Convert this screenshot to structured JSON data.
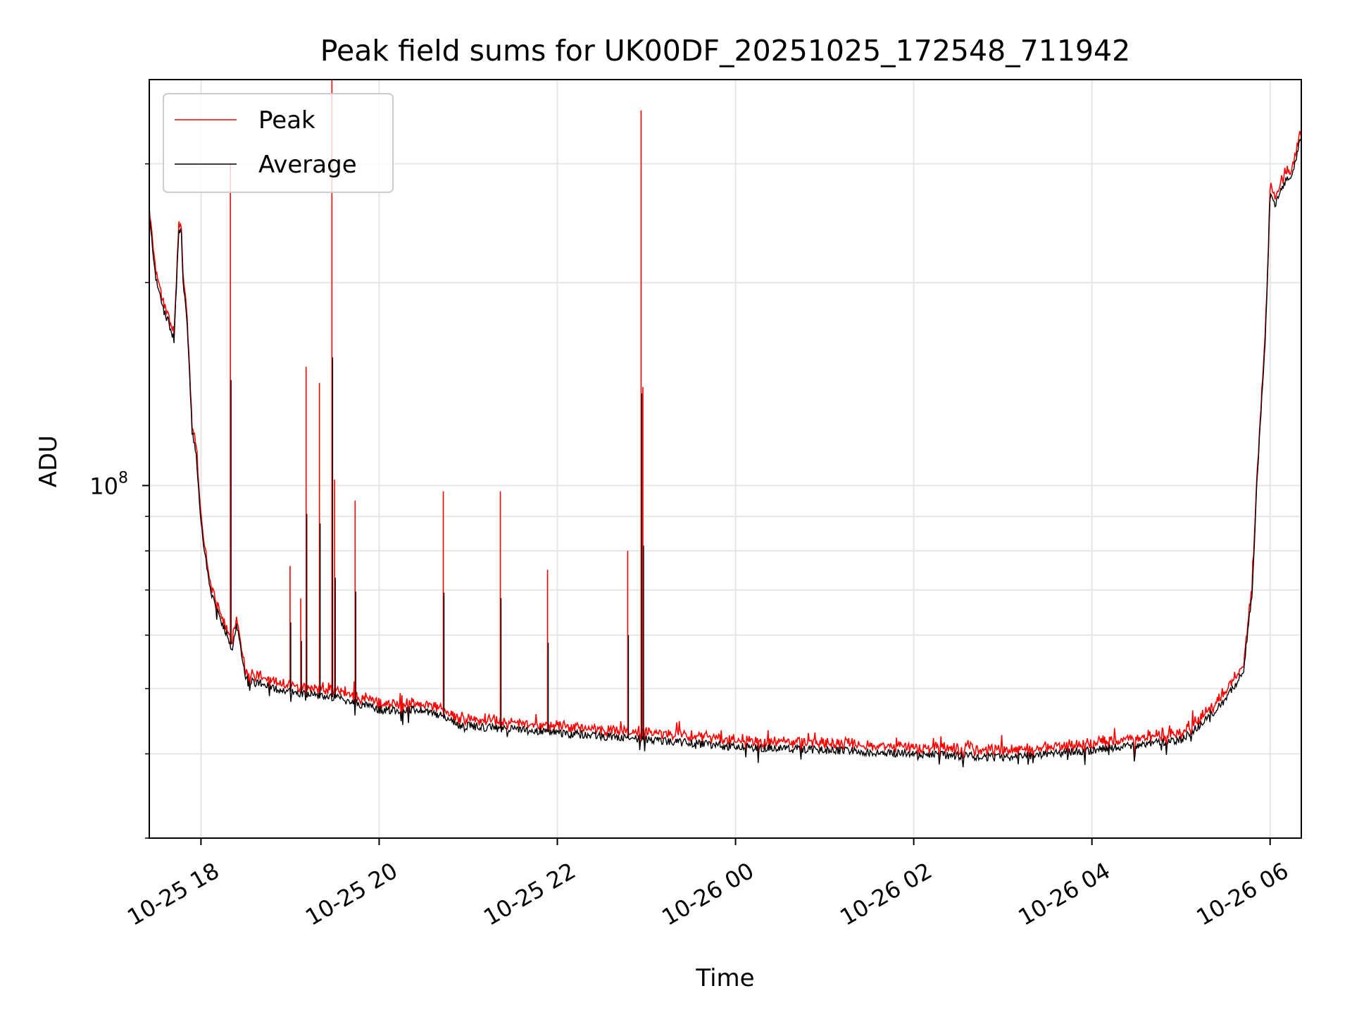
{
  "chart_data": {
    "type": "line",
    "title": "Peak field sums for UK00DF_20251025_172548_711942",
    "xlabel": "Time",
    "ylabel": "ADU",
    "yscale": "log",
    "ytick_label_base": "10",
    "ytick_label_exp": "8",
    "ytick_value": 100000000,
    "ylim": [
      30000000,
      400000000
    ],
    "minor_yticks": [
      30000000,
      40000000,
      50000000,
      60000000,
      70000000,
      80000000,
      90000000,
      200000000,
      300000000
    ],
    "xlim_hours": [
      -0.58,
      12.35
    ],
    "xticks": [
      {
        "hour": 0,
        "label": "10-25 18"
      },
      {
        "hour": 2,
        "label": "10-25 20"
      },
      {
        "hour": 4,
        "label": "10-25 22"
      },
      {
        "hour": 6,
        "label": "10-26 00"
      },
      {
        "hour": 8,
        "label": "10-26 02"
      },
      {
        "hour": 10,
        "label": "10-26 04"
      },
      {
        "hour": 12,
        "label": "10-26 06"
      }
    ],
    "grid": true,
    "legend_position": "top-left",
    "series": [
      {
        "name": "Peak",
        "color": "#ff0000"
      },
      {
        "name": "Average",
        "color": "#000000"
      }
    ],
    "average_series": {
      "hours": [
        -0.58,
        -0.5,
        -0.4,
        -0.3,
        -0.25,
        -0.22,
        -0.2,
        -0.15,
        -0.1,
        -0.05,
        0.0,
        0.1,
        0.2,
        0.3,
        0.35,
        0.4,
        0.5,
        0.6,
        0.7,
        0.8,
        1.0,
        1.5,
        1.9,
        2.0,
        2.5,
        2.8,
        2.9,
        3.0,
        3.5,
        4.0,
        5.0,
        6.0,
        7.0,
        8.0,
        9.0,
        10.0,
        11.0,
        11.2,
        11.5,
        11.7,
        11.8,
        11.85,
        11.95,
        12.0,
        12.05,
        12.15,
        12.25,
        12.35
      ],
      "values": [
        250000000,
        200000000,
        180000000,
        165000000,
        238000000,
        238000000,
        200000000,
        170000000,
        120000000,
        110000000,
        88000000,
        70000000,
        64000000,
        60000000,
        57000000,
        62000000,
        52000000,
        51000000,
        51000000,
        50000000,
        49500000,
        48500000,
        47000000,
        46500000,
        46500000,
        45000000,
        44000000,
        44000000,
        43500000,
        43000000,
        42000000,
        41000000,
        40500000,
        40000000,
        39500000,
        40500000,
        42000000,
        44000000,
        48000000,
        53000000,
        70000000,
        100000000,
        170000000,
        270000000,
        260000000,
        280000000,
        290000000,
        330000000
      ]
    },
    "peak_spikes": [
      {
        "hour": 0.33,
        "value": 300000000
      },
      {
        "hour": 1.0,
        "value": 76000000
      },
      {
        "hour": 1.12,
        "value": 68000000
      },
      {
        "hour": 1.18,
        "value": 150000000
      },
      {
        "hour": 1.33,
        "value": 142000000
      },
      {
        "hour": 1.47,
        "value": 400000000
      },
      {
        "hour": 1.5,
        "value": 102000000
      },
      {
        "hour": 1.73,
        "value": 95000000
      },
      {
        "hour": 2.72,
        "value": 98000000
      },
      {
        "hour": 3.36,
        "value": 98000000
      },
      {
        "hour": 3.89,
        "value": 75000000
      },
      {
        "hour": 4.79,
        "value": 80000000
      },
      {
        "hour": 4.94,
        "value": 360000000
      },
      {
        "hour": 4.96,
        "value": 140000000
      }
    ]
  }
}
